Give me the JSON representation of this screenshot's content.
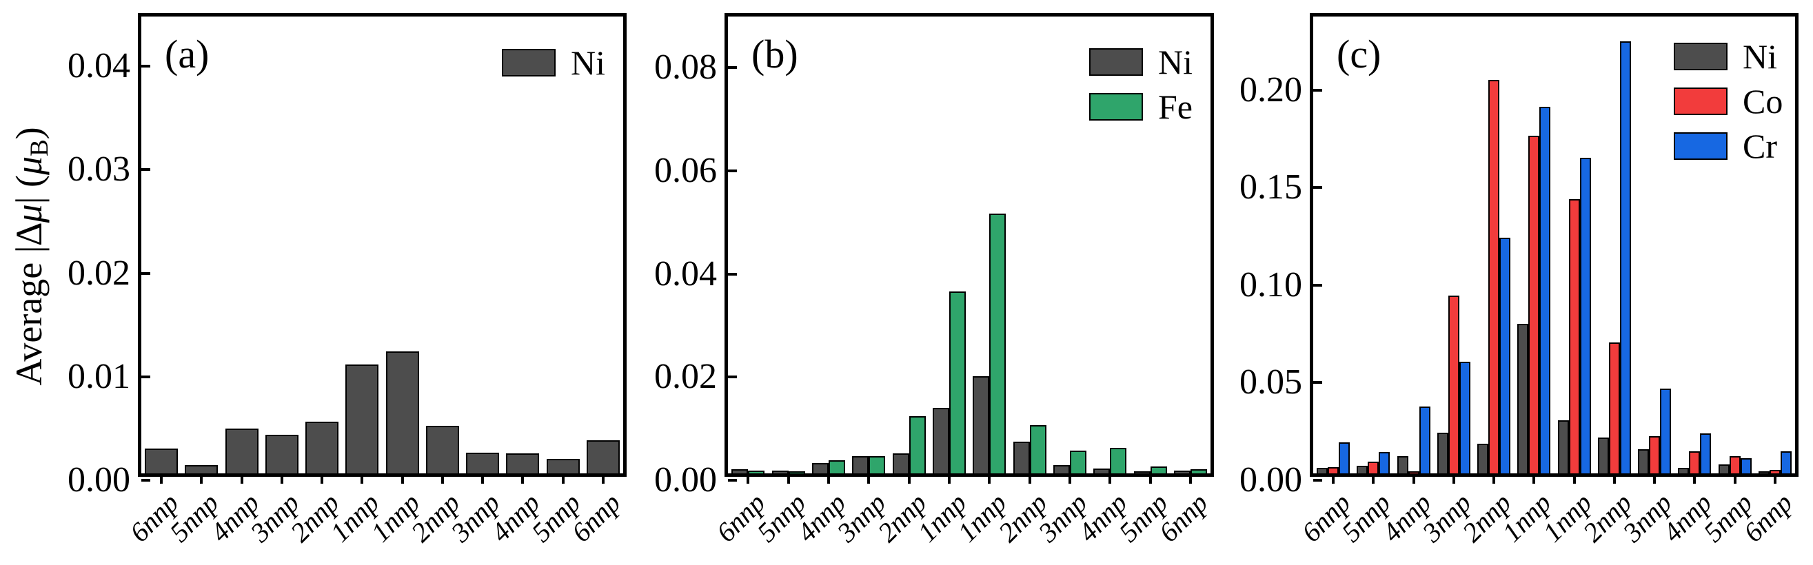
{
  "ylabel": {
    "p1": "Average |∆",
    "mu1": "μ",
    "p2": "| (",
    "mu2": "μ",
    "sub": "B",
    "p3": ")"
  },
  "chart_data": [
    {
      "type": "bar",
      "panel_label": "(a)",
      "categories": [
        "6nnp",
        "5nnp",
        "4nnp",
        "3nnp",
        "2nnp",
        "1nnp",
        "1nnp",
        "2nnp",
        "3nnp",
        "4nnp",
        "5nnp",
        "6nnp"
      ],
      "series": [
        {
          "name": "Ni",
          "color": "#4D4D4D",
          "values": [
            0.0024,
            0.0008,
            0.0043,
            0.0037,
            0.005,
            0.0105,
            0.0118,
            0.0046,
            0.002,
            0.0019,
            0.0014,
            0.0032
          ]
        }
      ],
      "ylim": [
        0,
        0.0448
      ],
      "yticks": [
        {
          "value": 0.0,
          "label": "0.00"
        },
        {
          "value": 0.01,
          "label": "0.01"
        },
        {
          "value": 0.02,
          "label": "0.02"
        },
        {
          "value": 0.03,
          "label": "0.03"
        },
        {
          "value": 0.04,
          "label": "0.04"
        }
      ],
      "legend_position": "top-right",
      "grid": false
    },
    {
      "type": "bar",
      "panel_label": "(b)",
      "categories": [
        "6nnp",
        "5nnp",
        "4nnp",
        "3nnp",
        "2nnp",
        "1nnp",
        "1nnp",
        "2nnp",
        "3nnp",
        "4nnp",
        "5nnp",
        "6nnp"
      ],
      "series": [
        {
          "name": "Ni",
          "color": "#4D4D4D",
          "values": [
            0.0008,
            0.0006,
            0.002,
            0.0033,
            0.0039,
            0.0127,
            0.0188,
            0.0062,
            0.0016,
            0.001,
            0.0004,
            0.0006
          ]
        },
        {
          "name": "Fe",
          "color": "#2FA56B",
          "values": [
            0.0006,
            0.0002,
            0.0025,
            0.0034,
            0.0111,
            0.0353,
            0.0503,
            0.0093,
            0.0044,
            0.005,
            0.0013,
            0.0008
          ]
        }
      ],
      "ylim": [
        0,
        0.0899
      ],
      "yticks": [
        {
          "value": 0.0,
          "label": "0.00"
        },
        {
          "value": 0.02,
          "label": "0.02"
        },
        {
          "value": 0.04,
          "label": "0.04"
        },
        {
          "value": 0.06,
          "label": "0.06"
        },
        {
          "value": 0.08,
          "label": "0.08"
        }
      ],
      "legend_position": "top-right",
      "grid": false
    },
    {
      "type": "bar",
      "panel_label": "(c)",
      "categories": [
        "6nnp",
        "5nnp",
        "4nnp",
        "3nnp",
        "2nnp",
        "1nnp",
        "1nnp",
        "2nnp",
        "3nnp",
        "4nnp",
        "5nnp",
        "6nnp"
      ],
      "series": [
        {
          "name": "Ni",
          "color": "#4D4D4D",
          "values": [
            0.0027,
            0.0038,
            0.0088,
            0.0208,
            0.0153,
            0.0768,
            0.0271,
            0.0182,
            0.0124,
            0.0029,
            0.0047,
            0.0012
          ]
        },
        {
          "name": "Co",
          "color": "#F23C3C",
          "values": [
            0.0032,
            0.0059,
            0.0012,
            0.0912,
            0.2017,
            0.173,
            0.1405,
            0.0671,
            0.0191,
            0.0112,
            0.0088,
            0.0018
          ]
        },
        {
          "name": "Cr",
          "color": "#1768E2",
          "values": [
            0.0159,
            0.0108,
            0.0341,
            0.0571,
            0.121,
            0.188,
            0.162,
            0.2217,
            0.0433,
            0.0206,
            0.0076,
            0.0112
          ]
        }
      ],
      "ylim": [
        0,
        0.2378
      ],
      "yticks": [
        {
          "value": 0.0,
          "label": "0.00"
        },
        {
          "value": 0.05,
          "label": "0.05"
        },
        {
          "value": 0.1,
          "label": "0.10"
        },
        {
          "value": 0.15,
          "label": "0.15"
        },
        {
          "value": 0.2,
          "label": "0.20"
        }
      ],
      "legend_position": "top-right",
      "grid": false
    }
  ]
}
